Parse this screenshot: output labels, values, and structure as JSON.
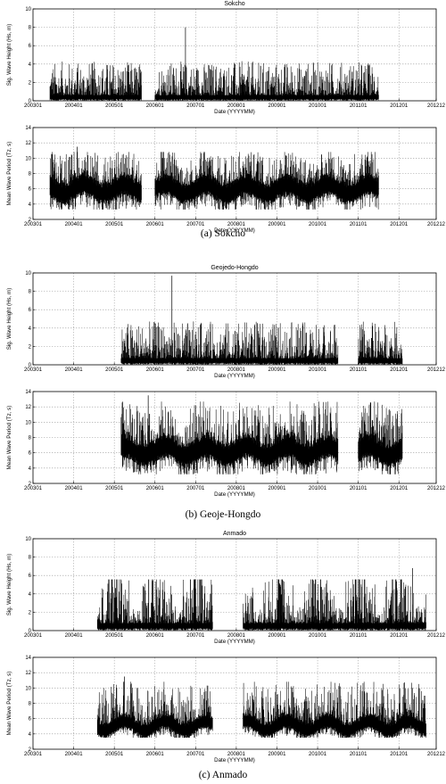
{
  "stations": [
    {
      "name": "Sokcho",
      "caption": "(a)  Sokcho",
      "records": [
        {
          "start": "2003-06",
          "end": "2005-08"
        },
        {
          "start": "2006-01",
          "end": "2011-06"
        }
      ]
    },
    {
      "name": "Geojedo-Hongdo",
      "caption": "(b)  Geoje-Hongdo",
      "records": [
        {
          "start": "2005-03",
          "end": "2010-06"
        },
        {
          "start": "2011-01",
          "end": "2012-01"
        }
      ]
    },
    {
      "name": "Anmado",
      "caption": "(c)  Anmado",
      "records": [
        {
          "start": "2004-08",
          "end": "2007-05"
        },
        {
          "start": "2008-03",
          "end": "2010-01"
        },
        {
          "start": "2010-02",
          "end": "2012-08"
        }
      ]
    }
  ],
  "chart_data": [
    {
      "type": "line",
      "station": "Sokcho",
      "title": "Sokcho",
      "xlabel": "Date (YYYYMM)",
      "ylabel": "Sig. Wave Height (Hs, m)",
      "xlim": [
        "2003-01",
        "2012-12"
      ],
      "ylim": [
        0,
        10
      ],
      "xticks": [
        "200301",
        "200401",
        "200501",
        "200601",
        "200701",
        "200801",
        "200901",
        "201001",
        "201101",
        "201201",
        "201212"
      ],
      "yticks": [
        0,
        2,
        4,
        6,
        8,
        10
      ],
      "grid": true,
      "series": [
        {
          "base": 0.6,
          "spread": 1.2,
          "max": 8.0,
          "max_at": "2006-10"
        }
      ]
    },
    {
      "type": "line",
      "station": "Sokcho",
      "title": "",
      "xlabel": "Date (YYYYMM)",
      "ylabel": "Mean Wave Period (Tz, s)",
      "xlim": [
        "2003-01",
        "2012-12"
      ],
      "ylim": [
        2,
        14
      ],
      "xticks": [
        "200301",
        "200401",
        "200501",
        "200601",
        "200701",
        "200801",
        "200901",
        "201001",
        "201101",
        "201201",
        "201212"
      ],
      "yticks": [
        2,
        4,
        6,
        8,
        10,
        12,
        14
      ],
      "grid": true,
      "series": [
        {
          "base": 6.0,
          "spread": 1.3,
          "min": 3.3,
          "max": 11.5
        }
      ]
    },
    {
      "type": "line",
      "station": "Geojedo-Hongdo",
      "title": "Geojedo-Hongdo",
      "xlabel": "Date (YYYYMM)",
      "ylabel": "Sig. Wave Height (Hs, m)",
      "xlim": [
        "2003-01",
        "2012-12"
      ],
      "ylim": [
        0,
        10
      ],
      "xticks": [
        "200301",
        "200401",
        "200501",
        "200601",
        "200701",
        "200801",
        "200901",
        "201001",
        "201101",
        "201201",
        "201212"
      ],
      "yticks": [
        0,
        2,
        4,
        6,
        8,
        10
      ],
      "grid": true,
      "series": [
        {
          "base": 0.7,
          "spread": 1.3,
          "max": 9.7,
          "max_at": "2006-06"
        }
      ]
    },
    {
      "type": "line",
      "station": "Geojedo-Hongdo",
      "title": "",
      "xlabel": "Date (YYYYMM)",
      "ylabel": "Mean Wave Period (Tz, s)",
      "xlim": [
        "2003-01",
        "2012-12"
      ],
      "ylim": [
        2,
        14
      ],
      "xticks": [
        "200301",
        "200401",
        "200501",
        "200601",
        "200701",
        "200801",
        "200901",
        "201001",
        "201101",
        "201201",
        "201212"
      ],
      "yticks": [
        2,
        4,
        6,
        8,
        10,
        12,
        14
      ],
      "grid": true,
      "series": [
        {
          "base": 6.3,
          "spread": 1.4,
          "min": 3.2,
          "max": 13.5
        }
      ]
    },
    {
      "type": "line",
      "station": "Anmado",
      "title": "Anmado",
      "xlabel": "Date (YYYYMM)",
      "ylabel": "Sig. Wave Height (Hs, m)",
      "xlim": [
        "2003-01",
        "2012-12"
      ],
      "ylim": [
        0,
        10
      ],
      "xticks": [
        "200301",
        "200401",
        "200501",
        "200601",
        "200701",
        "200801",
        "200901",
        "201001",
        "201101",
        "201201",
        "201212"
      ],
      "yticks": [
        0,
        2,
        4,
        6,
        8,
        10
      ],
      "grid": true,
      "series": [
        {
          "base": 0.8,
          "spread": 1.7,
          "max": 6.8,
          "max_at": "2012-05",
          "seasonal": true
        }
      ]
    },
    {
      "type": "line",
      "station": "Anmado",
      "title": "",
      "xlabel": "Date (YYYYMM)",
      "ylabel": "Mean Wave Period (Tz, s)",
      "xlim": [
        "2003-01",
        "2012-12"
      ],
      "ylim": [
        2,
        14
      ],
      "xticks": [
        "200301",
        "200401",
        "200501",
        "200601",
        "200701",
        "200801",
        "200901",
        "201001",
        "201101",
        "201201",
        "201212"
      ],
      "yticks": [
        2,
        4,
        6,
        8,
        10,
        12,
        14
      ],
      "grid": true,
      "series": [
        {
          "base": 5.1,
          "spread": 0.9,
          "min": 3.5,
          "max": 11.5
        }
      ]
    }
  ]
}
